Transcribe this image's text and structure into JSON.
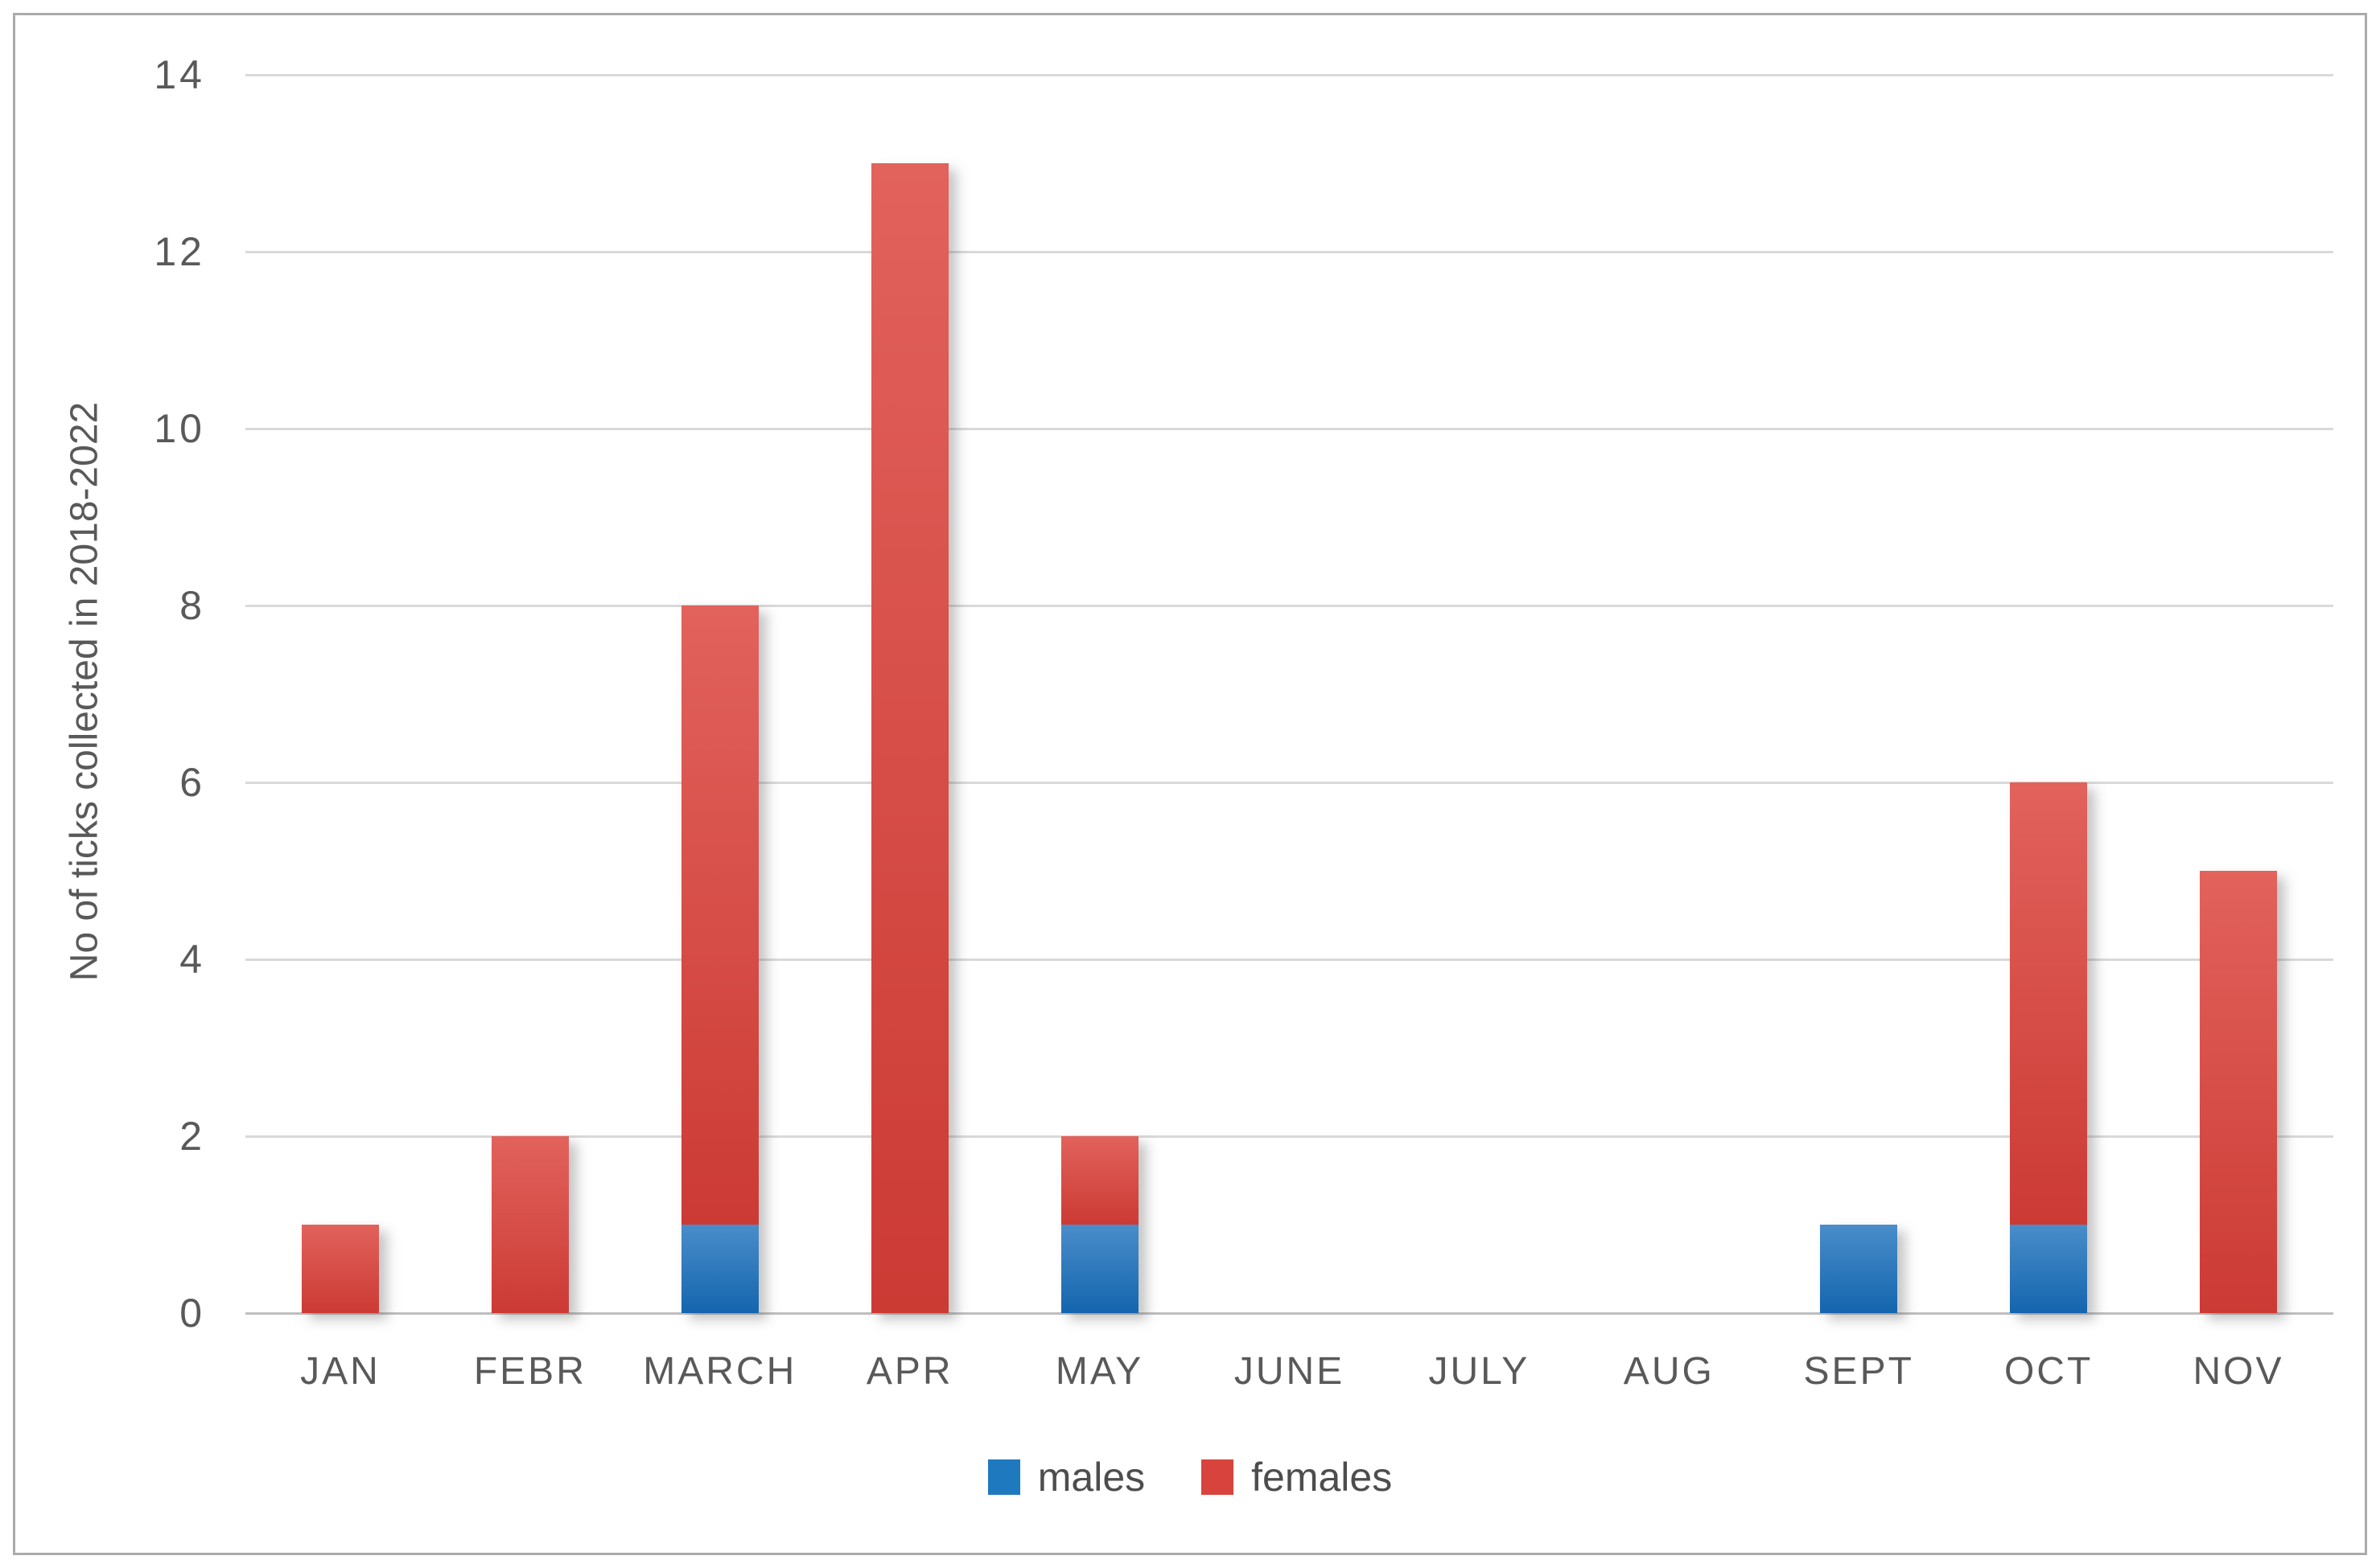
{
  "figure": {
    "frame_border_color": "#ababab",
    "background_color": "#ffffff"
  },
  "chart_data": {
    "type": "bar",
    "stacked": true,
    "title": "",
    "categories": [
      "JAN",
      "FEBR",
      "MARCH",
      "APR",
      "MAY",
      "JUNE",
      "JULY",
      "AUG",
      "SEPT",
      "OCT",
      "NOV"
    ],
    "series": [
      {
        "name": "males",
        "color": "#1f79bf",
        "gradient_top": "#4a8dca",
        "gradient_bottom": "#1465ae",
        "values": [
          0,
          0,
          1,
          0,
          1,
          0,
          0,
          0,
          1,
          1,
          0
        ]
      },
      {
        "name": "females",
        "color": "#d8433d",
        "gradient_top": "#e2625c",
        "gradient_bottom": "#cc3a34",
        "values": [
          1,
          2,
          7,
          13,
          1,
          0,
          0,
          0,
          0,
          5,
          5
        ]
      }
    ],
    "totals": [
      1,
      2,
      8,
      13,
      2,
      0,
      0,
      0,
      1,
      6,
      5
    ],
    "xlabel": "",
    "ylabel": "No of ticks collected in 2018-2022",
    "ylim": [
      0,
      14
    ],
    "yticks": [
      0,
      2,
      4,
      6,
      8,
      10,
      12,
      14
    ],
    "grid": true,
    "gridline_color": "#d9d9d9",
    "baseline_color": "#bfbfbf",
    "tick_label_color": "#595959",
    "legend_position": "bottom-center",
    "legend_text_color": "#4d4d4d"
  }
}
